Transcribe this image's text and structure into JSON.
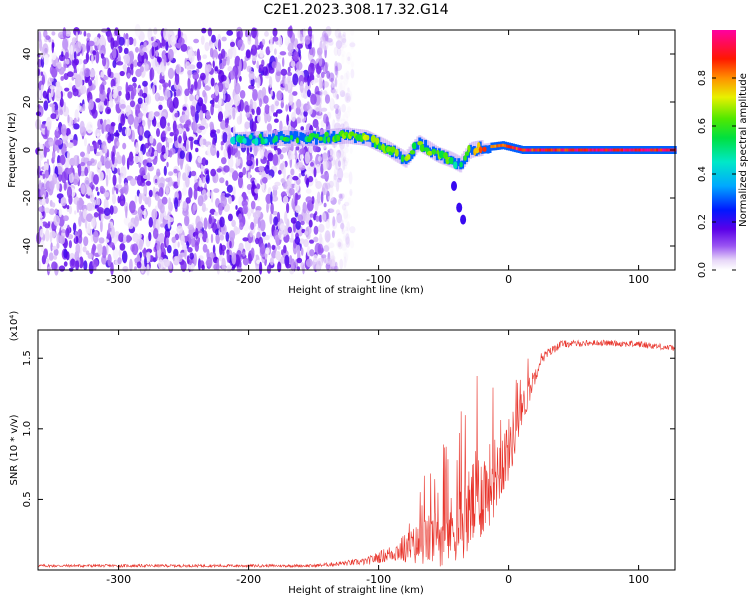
{
  "figure_title": "C2E1.2023.308.17.32.G14",
  "chart_data": [
    {
      "type": "heatmap",
      "xlabel": "Height of straight line (km)",
      "ylabel": "Frequency (Hz)",
      "xlim": [
        -362,
        128
      ],
      "ylim": [
        -50,
        50
      ],
      "x_ticks": [
        -300,
        -200,
        -100,
        0,
        100
      ],
      "x_tick_labels": [
        "-300",
        "-200",
        "-100",
        "0",
        "100"
      ],
      "y_ticks": [
        -40,
        -20,
        0,
        20,
        40
      ],
      "y_tick_labels": [
        "-40",
        "-20",
        "0",
        "20",
        "40"
      ],
      "colorbar": {
        "label": "Normalized spectral amplitude",
        "range": [
          0.0,
          1.0
        ],
        "ticks": [
          0.0,
          0.2,
          0.4,
          0.6,
          0.8
        ],
        "tick_labels": [
          "0.0",
          "0.2",
          "0.4",
          "0.6",
          "0.8"
        ]
      },
      "noise_region": {
        "x_range": [
          -362,
          -125
        ],
        "freq_range": [
          -50,
          50
        ],
        "amplitude_range": [
          0.02,
          0.15
        ]
      },
      "signal_trace": [
        {
          "x": -212,
          "freq": 4,
          "amp": 0.45
        },
        {
          "x": -180,
          "freq": 5,
          "amp": 0.55
        },
        {
          "x": -150,
          "freq": 5,
          "amp": 0.55
        },
        {
          "x": -125,
          "freq": 6,
          "amp": 0.6
        },
        {
          "x": -110,
          "freq": 5,
          "amp": 0.65
        },
        {
          "x": -95,
          "freq": 1,
          "amp": 0.6
        },
        {
          "x": -80,
          "freq": -4,
          "amp": 0.65
        },
        {
          "x": -70,
          "freq": 3,
          "amp": 0.6
        },
        {
          "x": -55,
          "freq": -2,
          "amp": 0.6
        },
        {
          "x": -45,
          "freq": -4,
          "amp": 0.6
        },
        {
          "x": -38,
          "freq": -6,
          "amp": 0.5
        },
        {
          "x": -30,
          "freq": 0,
          "amp": 0.7
        },
        {
          "x": -20,
          "freq": 1,
          "amp": 0.8
        },
        {
          "x": -5,
          "freq": 2,
          "amp": 0.85
        },
        {
          "x": 10,
          "freq": 0,
          "amp": 0.9
        },
        {
          "x": 50,
          "freq": 0,
          "amp": 0.9
        },
        {
          "x": 100,
          "freq": 0,
          "amp": 0.95
        },
        {
          "x": 128,
          "freq": 0,
          "amp": 0.9
        }
      ],
      "dip_trace": [
        {
          "x": -42,
          "freq": -15
        },
        {
          "x": -38,
          "freq": -24
        },
        {
          "x": -35,
          "freq": -29
        }
      ]
    },
    {
      "type": "line",
      "xlabel": "Height of straight line (km)",
      "ylabel": "SNR (10 * v/v)",
      "y_multiplier_label": "(x10⁴)",
      "xlim": [
        -362,
        128
      ],
      "ylim": [
        0,
        1.7
      ],
      "x_ticks": [
        -300,
        -200,
        -100,
        0,
        100
      ],
      "x_tick_labels": [
        "-300",
        "-200",
        "-100",
        "0",
        "100"
      ],
      "y_ticks": [
        0.5,
        1.0,
        1.5
      ],
      "y_tick_labels": [
        "0.5",
        "1.0",
        "1.5"
      ],
      "color": "#e8332a",
      "envelope": [
        {
          "x": -362,
          "base": 0.03,
          "spread": 0.02
        },
        {
          "x": -150,
          "base": 0.03,
          "spread": 0.02
        },
        {
          "x": -110,
          "base": 0.06,
          "spread": 0.05
        },
        {
          "x": -90,
          "base": 0.12,
          "spread": 0.12
        },
        {
          "x": -70,
          "base": 0.18,
          "spread": 0.3
        },
        {
          "x": -50,
          "base": 0.25,
          "spread": 0.45
        },
        {
          "x": -35,
          "base": 0.35,
          "spread": 0.55
        },
        {
          "x": -25,
          "base": 0.5,
          "spread": 0.7
        },
        {
          "x": -15,
          "base": 0.6,
          "spread": 0.6
        },
        {
          "x": 0,
          "base": 0.85,
          "spread": 0.45
        },
        {
          "x": 15,
          "base": 1.25,
          "spread": 0.2
        },
        {
          "x": 25,
          "base": 1.5,
          "spread": 0.08
        },
        {
          "x": 40,
          "base": 1.6,
          "spread": 0.05
        },
        {
          "x": 70,
          "base": 1.61,
          "spread": 0.04
        },
        {
          "x": 100,
          "base": 1.6,
          "spread": 0.05
        },
        {
          "x": 128,
          "base": 1.57,
          "spread": 0.04
        }
      ]
    }
  ]
}
